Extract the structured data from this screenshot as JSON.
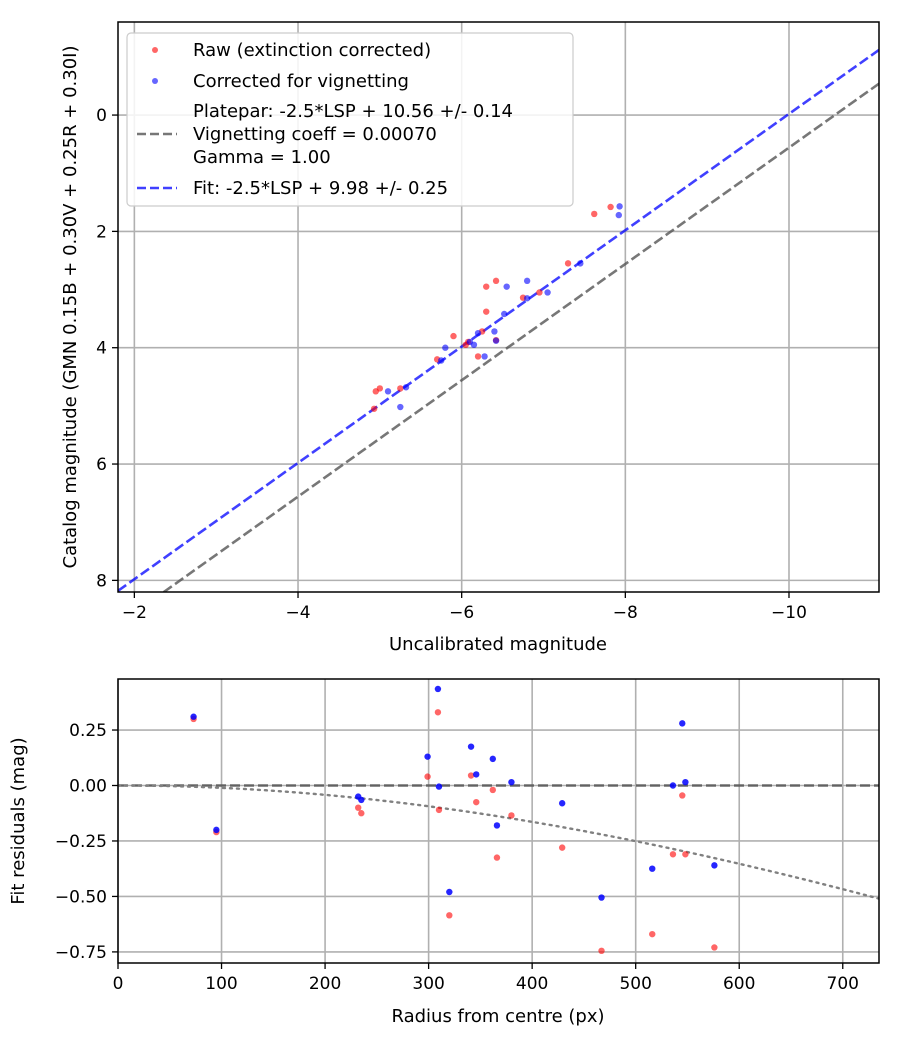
{
  "colors": {
    "raw": "#ff0000",
    "corrected": "#0000ff",
    "platepar": "#555555",
    "fit": "#0000ff",
    "vignetting": "#808080"
  },
  "chart_data": [
    {
      "type": "scatter",
      "name": "calibration",
      "xlabel": "Uncalibrated magnitude",
      "ylabel": "Catalog magnitude (GMN 0.15B + 0.30V + 0.25R + 0.30I)",
      "xlim": [
        -1.8,
        -11.1
      ],
      "ylim": [
        8.2,
        -1.6
      ],
      "xticks": [
        -2,
        -4,
        -6,
        -8,
        -10
      ],
      "xtick_labels": [
        "−2",
        "−4",
        "−6",
        "−8",
        "−10"
      ],
      "yticks": [
        0,
        2,
        4,
        6,
        8
      ],
      "ytick_labels": [
        "0",
        "2",
        "4",
        "6",
        "8"
      ],
      "grid": true,
      "legend_position": "top-left",
      "legend": [
        {
          "label": "Raw (extinction corrected)",
          "kind": "marker",
          "color": "#ff0000"
        },
        {
          "label": "Corrected for vignetting",
          "kind": "marker",
          "color": "#0000ff"
        },
        {
          "label": "Platepar: -2.5*LSP + 10.56 +/- 0.14",
          "label2": "Vignetting coeff = 0.00070",
          "label3": "Gamma = 1.00",
          "kind": "dashed",
          "color": "#555555"
        },
        {
          "label": "Fit: -2.5*LSP + 9.98 +/- 0.25",
          "kind": "dashed",
          "color": "#0000ff"
        }
      ],
      "lines": [
        {
          "name": "platepar",
          "slope": 1.0,
          "intercept": 10.56,
          "color": "#555555"
        },
        {
          "name": "fit",
          "slope": 1.0,
          "intercept": 9.98,
          "color": "#0000ff"
        }
      ],
      "series": [
        {
          "name": "Raw (extinction corrected)",
          "color": "#ff0000",
          "points": [
            [
              -7.82,
              1.58
            ],
            [
              -7.62,
              1.7
            ],
            [
              -7.3,
              2.55
            ],
            [
              -6.95,
              3.05
            ],
            [
              -6.75,
              3.14
            ],
            [
              -6.42,
              2.85
            ],
            [
              -6.3,
              2.95
            ],
            [
              -6.3,
              3.38
            ],
            [
              -6.25,
              3.72
            ],
            [
              -6.2,
              4.15
            ],
            [
              -6.08,
              3.9
            ],
            [
              -6.05,
              3.95
            ],
            [
              -5.9,
              3.8
            ],
            [
              -5.7,
              4.2
            ],
            [
              -5.25,
              4.7
            ],
            [
              -5.0,
              4.7
            ],
            [
              -4.95,
              4.75
            ],
            [
              -4.93,
              5.05
            ],
            [
              -6.42,
              3.87
            ]
          ]
        },
        {
          "name": "Corrected for vignetting",
          "color": "#0000ff",
          "points": [
            [
              -7.93,
              1.57
            ],
            [
              -7.92,
              1.72
            ],
            [
              -7.45,
              2.55
            ],
            [
              -7.05,
              3.05
            ],
            [
              -6.8,
              2.85
            ],
            [
              -6.8,
              3.15
            ],
            [
              -6.55,
              2.95
            ],
            [
              -6.52,
              3.42
            ],
            [
              -6.4,
              3.72
            ],
            [
              -6.42,
              3.88
            ],
            [
              -6.28,
              4.15
            ],
            [
              -6.2,
              3.75
            ],
            [
              -6.15,
              3.95
            ],
            [
              -6.1,
              3.9
            ],
            [
              -5.8,
              4.0
            ],
            [
              -5.75,
              4.22
            ],
            [
              -5.32,
              4.68
            ],
            [
              -5.25,
              5.02
            ],
            [
              -5.1,
              4.75
            ]
          ]
        }
      ]
    },
    {
      "type": "scatter",
      "name": "residuals",
      "xlabel": "Radius from centre (px)",
      "ylabel": "Fit residuals (mag)",
      "xlim": [
        0,
        735
      ],
      "ylim": [
        -0.8,
        0.48
      ],
      "xticks": [
        0,
        100,
        200,
        300,
        400,
        500,
        600,
        700
      ],
      "xtick_labels": [
        "0",
        "100",
        "200",
        "300",
        "400",
        "500",
        "600",
        "700"
      ],
      "yticks": [
        -0.75,
        -0.5,
        -0.25,
        0,
        0.25
      ],
      "ytick_labels": [
        "−0.75",
        "−0.50",
        "−0.25",
        "0.00",
        "0.25"
      ],
      "grid": true,
      "zero_line": {
        "y": 0,
        "color": "#555555"
      },
      "vignetting_curve": {
        "coeff": 0.0007,
        "color": "#808080"
      },
      "series": [
        {
          "name": "Raw (extinction corrected)",
          "color": "#ff0000",
          "points": [
            [
              73,
              0.3
            ],
            [
              95,
              -0.21
            ],
            [
              232,
              -0.1
            ],
            [
              235,
              -0.125
            ],
            [
              299,
              0.04
            ],
            [
              309,
              0.33
            ],
            [
              310,
              -0.11
            ],
            [
              320,
              -0.585
            ],
            [
              341,
              0.045
            ],
            [
              346,
              -0.075
            ],
            [
              362,
              -0.02
            ],
            [
              366,
              -0.325
            ],
            [
              380,
              -0.135
            ],
            [
              429,
              -0.28
            ],
            [
              467,
              -0.745
            ],
            [
              516,
              -0.67
            ],
            [
              536,
              -0.31
            ],
            [
              545,
              -0.045
            ],
            [
              548,
              -0.31
            ],
            [
              576,
              -0.73
            ]
          ]
        },
        {
          "name": "Corrected for vignetting",
          "color": "#0000ff",
          "points": [
            [
              73,
              0.31
            ],
            [
              95,
              -0.2
            ],
            [
              232,
              -0.05
            ],
            [
              235,
              -0.065
            ],
            [
              299,
              0.13
            ],
            [
              309,
              0.435
            ],
            [
              310,
              -0.005
            ],
            [
              320,
              -0.48
            ],
            [
              341,
              0.175
            ],
            [
              346,
              0.05
            ],
            [
              362,
              0.12
            ],
            [
              366,
              -0.18
            ],
            [
              380,
              0.015
            ],
            [
              429,
              -0.08
            ],
            [
              467,
              -0.505
            ],
            [
              516,
              -0.375
            ],
            [
              536,
              0.0
            ],
            [
              545,
              0.28
            ],
            [
              548,
              0.015
            ],
            [
              576,
              -0.36
            ]
          ]
        }
      ]
    }
  ]
}
